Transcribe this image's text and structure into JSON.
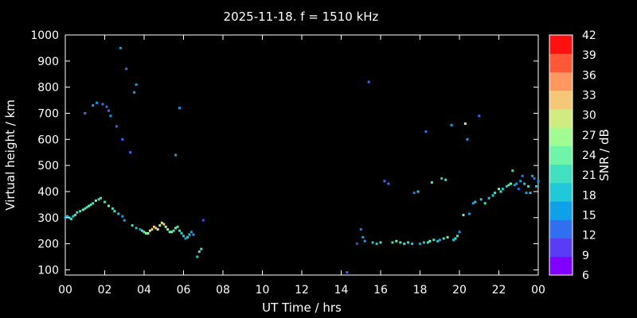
{
  "chart_data": {
    "type": "scatter",
    "title": "2025-11-18. f = 1510 kHz",
    "xlabel": "UT Time / hrs",
    "ylabel": "Virtual height / km",
    "colorbar_label": "SNR / dB",
    "xlim": [
      0,
      24
    ],
    "ylim": [
      80,
      1000
    ],
    "xticks": [
      "00",
      "02",
      "04",
      "06",
      "08",
      "10",
      "12",
      "14",
      "16",
      "18",
      "20",
      "22",
      "00"
    ],
    "yticks": [
      100,
      200,
      300,
      400,
      500,
      600,
      700,
      800,
      900,
      1000
    ],
    "colorbar_ticks": [
      6,
      9,
      12,
      15,
      18,
      21,
      24,
      27,
      30,
      33,
      36,
      39,
      42
    ],
    "colorbar_colors": [
      "#8000ff",
      "#5a3cf7",
      "#3070f0",
      "#10a0e8",
      "#20c8d8",
      "#40e0c0",
      "#70f4a8",
      "#a0fc90",
      "#d0ec80",
      "#f4c878",
      "#ff9860",
      "#ff5838",
      "#ff1010"
    ],
    "grid": false,
    "points": [
      [
        0.0,
        300,
        16
      ],
      [
        0.1,
        305,
        18
      ],
      [
        0.2,
        300,
        19
      ],
      [
        0.3,
        295,
        21
      ],
      [
        0.4,
        305,
        19
      ],
      [
        0.5,
        310,
        22
      ],
      [
        0.6,
        320,
        20
      ],
      [
        0.75,
        325,
        21
      ],
      [
        0.9,
        330,
        23
      ],
      [
        1.0,
        335,
        21
      ],
      [
        1.1,
        340,
        22
      ],
      [
        1.2,
        345,
        24
      ],
      [
        1.3,
        350,
        22
      ],
      [
        1.4,
        355,
        21
      ],
      [
        1.55,
        365,
        24
      ],
      [
        1.7,
        370,
        22
      ],
      [
        1.8,
        375,
        20
      ],
      [
        2.0,
        360,
        21
      ],
      [
        2.2,
        345,
        23
      ],
      [
        2.4,
        335,
        22
      ],
      [
        2.5,
        325,
        21
      ],
      [
        2.7,
        315,
        19
      ],
      [
        2.9,
        305,
        17
      ],
      [
        3.0,
        290,
        16
      ],
      [
        3.4,
        270,
        22
      ],
      [
        3.6,
        260,
        18
      ],
      [
        3.8,
        255,
        17
      ],
      [
        3.9,
        250,
        20
      ],
      [
        4.0,
        245,
        24
      ],
      [
        4.1,
        240,
        25
      ],
      [
        4.2,
        240,
        28
      ],
      [
        4.3,
        250,
        29
      ],
      [
        4.4,
        255,
        31
      ],
      [
        4.5,
        265,
        32
      ],
      [
        4.6,
        260,
        33
      ],
      [
        4.7,
        255,
        30
      ],
      [
        4.8,
        270,
        27
      ],
      [
        4.9,
        280,
        29
      ],
      [
        5.0,
        275,
        31
      ],
      [
        5.1,
        265,
        28
      ],
      [
        5.2,
        255,
        26
      ],
      [
        5.3,
        245,
        24
      ],
      [
        5.4,
        245,
        23
      ],
      [
        5.5,
        250,
        21
      ],
      [
        5.6,
        260,
        23
      ],
      [
        5.7,
        265,
        22
      ],
      [
        5.8,
        250,
        20
      ],
      [
        5.9,
        240,
        19
      ],
      [
        6.0,
        230,
        18
      ],
      [
        6.1,
        220,
        17
      ],
      [
        6.2,
        225,
        19
      ],
      [
        6.3,
        235,
        18
      ],
      [
        6.4,
        245,
        17
      ],
      [
        6.5,
        235,
        16
      ],
      [
        6.7,
        150,
        19
      ],
      [
        6.8,
        170,
        20
      ],
      [
        6.9,
        180,
        22
      ],
      [
        7.0,
        290,
        11
      ],
      [
        1.0,
        700,
        14
      ],
      [
        1.4,
        730,
        16
      ],
      [
        1.6,
        740,
        15
      ],
      [
        1.9,
        735,
        14
      ],
      [
        2.1,
        725,
        13
      ],
      [
        2.2,
        710,
        14
      ],
      [
        2.3,
        690,
        15
      ],
      [
        2.6,
        650,
        13
      ],
      [
        2.8,
        950,
        16
      ],
      [
        2.9,
        600,
        13
      ],
      [
        3.1,
        870,
        14
      ],
      [
        3.3,
        550,
        12
      ],
      [
        3.5,
        780,
        15
      ],
      [
        3.6,
        810,
        16
      ],
      [
        5.6,
        540,
        15
      ],
      [
        5.8,
        720,
        15
      ],
      [
        14.3,
        90,
        12
      ],
      [
        14.8,
        200,
        11
      ],
      [
        15.0,
        255,
        14
      ],
      [
        15.1,
        225,
        16
      ],
      [
        15.2,
        210,
        17
      ],
      [
        15.4,
        820,
        13
      ],
      [
        15.6,
        205,
        18
      ],
      [
        15.8,
        200,
        18
      ],
      [
        16.0,
        205,
        21
      ],
      [
        16.2,
        440,
        13
      ],
      [
        16.4,
        430,
        12
      ],
      [
        16.6,
        205,
        22
      ],
      [
        16.8,
        210,
        23
      ],
      [
        17.0,
        205,
        22
      ],
      [
        17.2,
        200,
        21
      ],
      [
        17.4,
        205,
        20
      ],
      [
        17.6,
        200,
        18
      ],
      [
        17.7,
        395,
        14
      ],
      [
        17.9,
        400,
        18
      ],
      [
        18.0,
        200,
        17
      ],
      [
        18.2,
        205,
        19
      ],
      [
        18.3,
        630,
        13
      ],
      [
        18.4,
        205,
        21
      ],
      [
        18.5,
        210,
        24
      ],
      [
        18.6,
        435,
        22
      ],
      [
        18.7,
        215,
        20
      ],
      [
        18.9,
        210,
        18
      ],
      [
        19.0,
        215,
        17
      ],
      [
        19.1,
        450,
        19
      ],
      [
        19.2,
        220,
        21
      ],
      [
        19.3,
        445,
        22
      ],
      [
        19.4,
        225,
        23
      ],
      [
        19.6,
        655,
        15
      ],
      [
        19.7,
        215,
        19
      ],
      [
        19.8,
        220,
        21
      ],
      [
        19.9,
        230,
        20
      ],
      [
        20.0,
        245,
        17
      ],
      [
        20.2,
        310,
        24
      ],
      [
        20.3,
        660,
        30
      ],
      [
        20.4,
        600,
        17
      ],
      [
        20.5,
        315,
        15
      ],
      [
        20.7,
        355,
        17
      ],
      [
        20.8,
        360,
        19
      ],
      [
        21.0,
        690,
        13
      ],
      [
        21.1,
        370,
        18
      ],
      [
        21.3,
        355,
        20
      ],
      [
        21.5,
        375,
        19
      ],
      [
        21.7,
        385,
        18
      ],
      [
        21.8,
        395,
        21
      ],
      [
        22.0,
        410,
        23
      ],
      [
        22.1,
        400,
        20
      ],
      [
        22.2,
        410,
        19
      ],
      [
        22.4,
        420,
        18
      ],
      [
        22.5,
        425,
        21
      ],
      [
        22.6,
        430,
        24
      ],
      [
        22.7,
        480,
        20
      ],
      [
        22.8,
        425,
        17
      ],
      [
        22.9,
        430,
        16
      ],
      [
        23.0,
        410,
        14
      ],
      [
        23.1,
        440,
        15
      ],
      [
        23.2,
        460,
        13
      ],
      [
        23.3,
        430,
        18
      ],
      [
        23.4,
        395,
        16
      ],
      [
        23.5,
        420,
        20
      ],
      [
        23.6,
        395,
        18
      ],
      [
        23.7,
        460,
        15
      ],
      [
        23.8,
        450,
        14
      ],
      [
        23.9,
        420,
        19
      ],
      [
        24.0,
        440,
        16
      ]
    ]
  }
}
